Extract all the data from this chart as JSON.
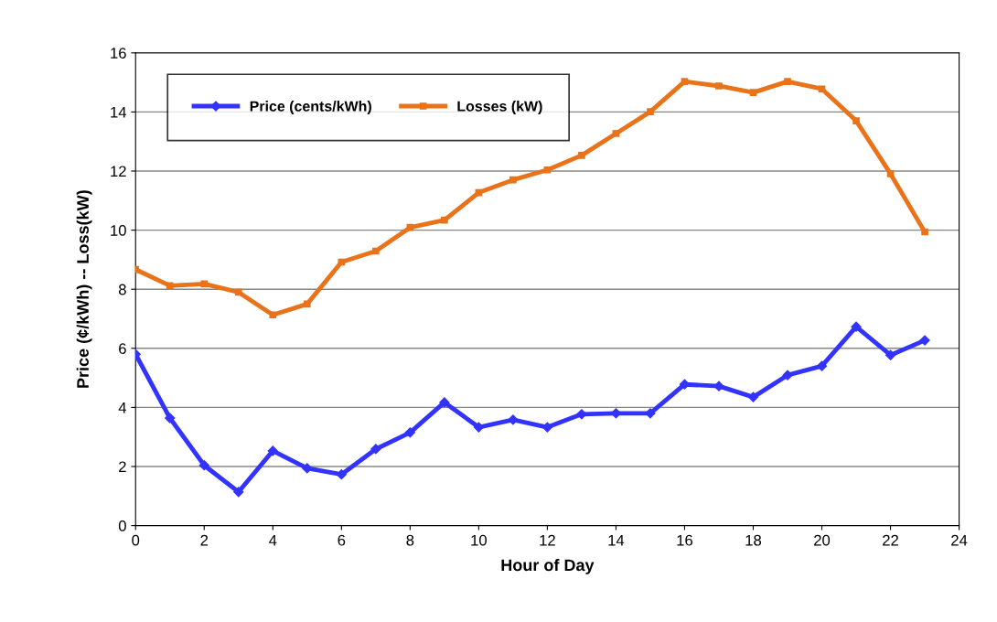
{
  "chart_data": {
    "type": "line",
    "xlabel": "Hour of Day",
    "ylabel": "Price (¢/kWh) -- Loss(kW)",
    "x": [
      0,
      1,
      2,
      3,
      4,
      5,
      6,
      7,
      8,
      9,
      10,
      11,
      12,
      13,
      14,
      15,
      16,
      17,
      18,
      19,
      20,
      21,
      22,
      23
    ],
    "series": [
      {
        "name": "Price (cents/kWh)",
        "color": "#3333ff",
        "marker": "diamond",
        "values": [
          5.8,
          3.64,
          2.04,
          1.14,
          2.53,
          1.94,
          1.73,
          2.59,
          3.15,
          4.17,
          3.33,
          3.58,
          3.33,
          3.77,
          3.8,
          3.8,
          4.78,
          4.72,
          4.35,
          5.09,
          5.4,
          6.73,
          5.77,
          6.27
        ]
      },
      {
        "name": "Losses (kW)",
        "color": "#e8731a",
        "marker": "square",
        "values": [
          8.67,
          8.12,
          8.18,
          7.9,
          7.13,
          7.5,
          8.92,
          9.29,
          10.09,
          10.34,
          11.27,
          11.7,
          12.04,
          12.53,
          13.27,
          14.01,
          15.03,
          14.88,
          14.66,
          15.03,
          14.78,
          13.7,
          11.91,
          9.94
        ]
      }
    ],
    "xlim": [
      0,
      24
    ],
    "xticks": [
      0,
      2,
      4,
      6,
      8,
      10,
      12,
      14,
      16,
      18,
      20,
      22,
      24
    ],
    "ylim": [
      0,
      16
    ],
    "yticks": [
      0,
      2,
      4,
      6,
      8,
      10,
      12,
      14,
      16
    ],
    "grid": "y",
    "legend": "top left",
    "line_style": "solid"
  }
}
